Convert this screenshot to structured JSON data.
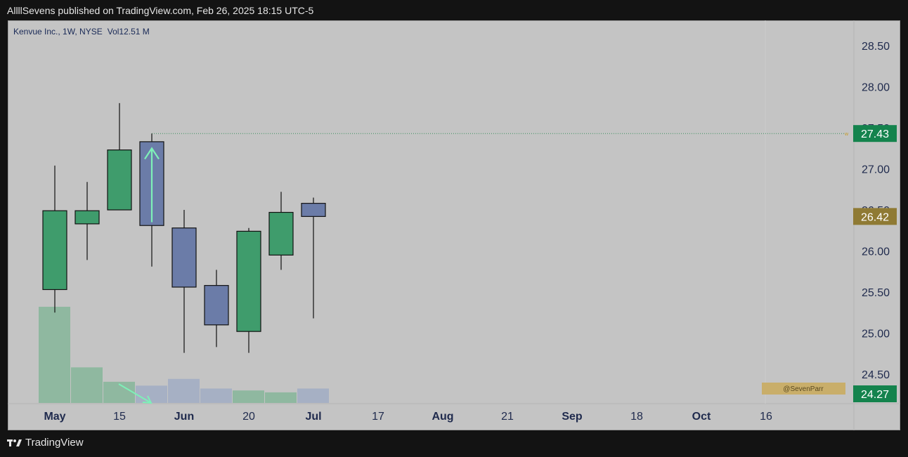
{
  "header": {
    "published_text": "AllllSevens published on TradingView.com, Feb 26, 2025 18:15 UTC-5"
  },
  "footer": {
    "brand_label": "TradingView",
    "logo_icon": "tradingview-logo-icon"
  },
  "watermark": {
    "text": "@SevenParr",
    "color": "#c9ae6a"
  },
  "chart_data": {
    "type": "candlestick",
    "title": "Kenvue Inc., 1W, NYSE",
    "volume_label": "Vol",
    "volume_value": "12.51 M",
    "timeframe": "1W",
    "exchange": "NYSE",
    "ylim": [
      24.27,
      28.76
    ],
    "yticks": [
      "28.50",
      "28.00",
      "27.50",
      "27.00",
      "26.50",
      "26.00",
      "25.50",
      "25.00",
      "24.50"
    ],
    "xticks": [
      {
        "label": "May",
        "bold": true
      },
      {
        "label": "15",
        "bold": false
      },
      {
        "label": "Jun",
        "bold": true
      },
      {
        "label": "20",
        "bold": false
      },
      {
        "label": "Jul",
        "bold": true
      },
      {
        "label": "17",
        "bold": false
      },
      {
        "label": "Aug",
        "bold": true
      },
      {
        "label": "21",
        "bold": false
      },
      {
        "label": "Sep",
        "bold": true
      },
      {
        "label": "18",
        "bold": false
      },
      {
        "label": "Oct",
        "bold": true
      },
      {
        "label": "16",
        "bold": false
      }
    ],
    "candles": [
      {
        "open": 25.53,
        "high": 27.04,
        "low": 25.25,
        "close": 26.49,
        "volume": 1.0
      },
      {
        "open": 26.33,
        "high": 26.84,
        "low": 25.89,
        "close": 26.49,
        "volume": 0.37
      },
      {
        "open": 26.5,
        "high": 27.8,
        "low": 26.5,
        "close": 27.23,
        "volume": 0.22
      },
      {
        "open": 27.33,
        "high": 27.43,
        "low": 25.81,
        "close": 26.31,
        "volume": 0.18
      },
      {
        "open": 26.28,
        "high": 26.5,
        "low": 24.76,
        "close": 25.56,
        "volume": 0.25
      },
      {
        "open": 25.58,
        "high": 25.77,
        "low": 24.83,
        "close": 25.1,
        "volume": 0.15
      },
      {
        "open": 25.02,
        "high": 26.28,
        "low": 24.76,
        "close": 26.24,
        "volume": 0.13
      },
      {
        "open": 25.95,
        "high": 26.72,
        "low": 25.77,
        "close": 26.47,
        "volume": 0.11
      },
      {
        "open": 26.58,
        "high": 26.65,
        "low": 25.18,
        "close": 26.42,
        "volume": 0.15
      }
    ],
    "colors": {
      "up_body": "#3f9c6c",
      "down_body": "#6b7ca8",
      "up_volume": "#8fb8a0",
      "down_volume": "#a6b0c4",
      "panel_bg": "#c4c4c4",
      "price_bg_up": "#14834d",
      "current_price_bg": "#8f7a34",
      "guide_line": "#3d8f5f"
    },
    "price_labels": [
      {
        "value": "27.43",
        "role": "high"
      },
      {
        "value": "26.42",
        "role": "last"
      },
      {
        "value": "24.27",
        "role": "low"
      }
    ],
    "horizontal_level": 27.43,
    "annotations": [
      {
        "type": "arrow-up",
        "color": "#7ef0b8"
      },
      {
        "type": "arrow-down",
        "color": "#7ef0b8"
      }
    ]
  }
}
